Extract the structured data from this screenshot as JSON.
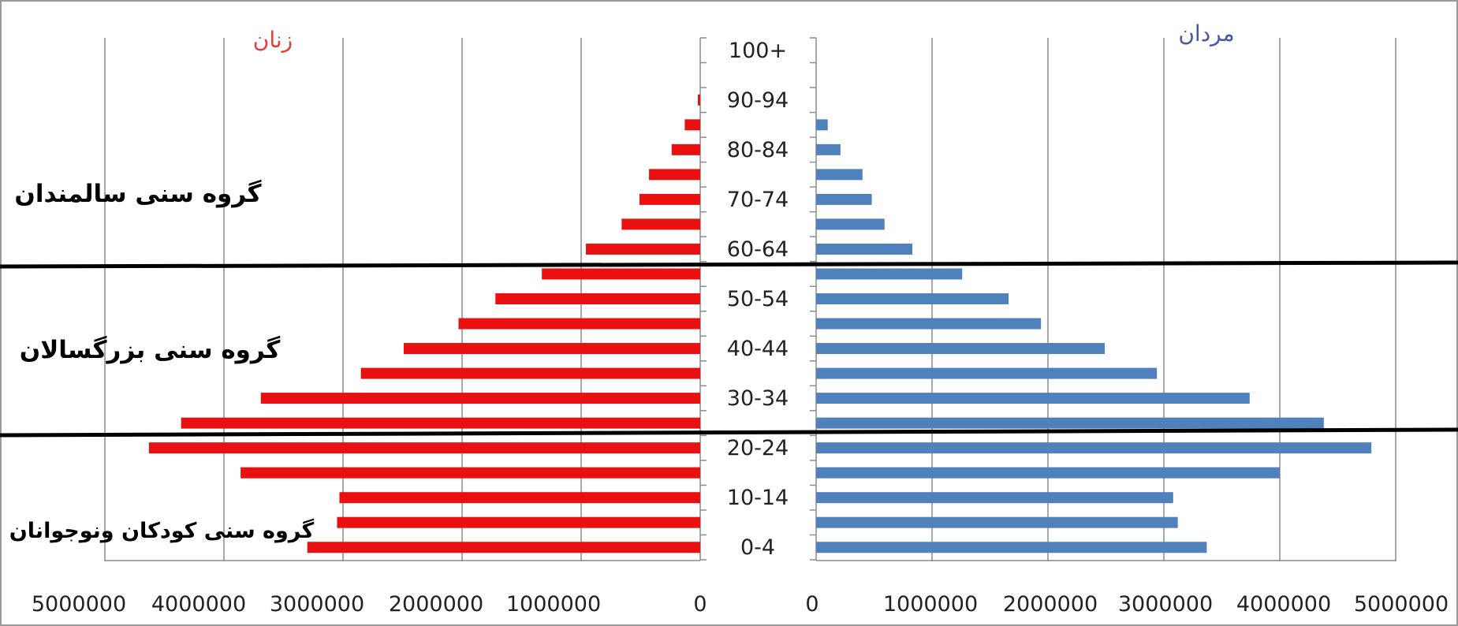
{
  "chart_data": {
    "type": "bar",
    "orientation": "horizontal",
    "layout": "population-pyramid",
    "age_groups": [
      "0-4",
      "5-9",
      "10-14",
      "15-19",
      "20-24",
      "25-29",
      "30-34",
      "35-39",
      "40-44",
      "45-49",
      "50-54",
      "55-59",
      "60-64",
      "65-69",
      "70-74",
      "75-79",
      "80-84",
      "85-89",
      "90-94",
      "95-99",
      "100+"
    ],
    "age_labels_shown": [
      "0-4",
      "10-14",
      "20-24",
      "30-34",
      "40-44",
      "50-54",
      "60-64",
      "70-74",
      "80-84",
      "90-94",
      "100+"
    ],
    "series": [
      {
        "name": "زنان",
        "side": "left",
        "color": "#e81010",
        "values": [
          3300000,
          3050000,
          3030000,
          3860000,
          4630000,
          4360000,
          3690000,
          2850000,
          2490000,
          2030000,
          1720000,
          1330000,
          960000,
          660000,
          510000,
          430000,
          240000,
          130000,
          20000,
          0,
          0
        ]
      },
      {
        "name": "مردان",
        "side": "right",
        "color": "#4f81bd",
        "values": [
          3370000,
          3120000,
          3080000,
          4000000,
          4790000,
          4380000,
          3740000,
          2940000,
          2490000,
          1940000,
          1660000,
          1260000,
          830000,
          590000,
          480000,
          400000,
          210000,
          100000,
          0,
          0,
          0
        ]
      }
    ],
    "x_ticks_left": [
      "5000000",
      "4000000",
      "3000000",
      "2000000",
      "1000000",
      "0"
    ],
    "x_ticks_right": [
      "0",
      "1000000",
      "2000000",
      "3000000",
      "4000000",
      "5000000"
    ],
    "xlim": [
      0,
      5000000
    ],
    "grid": true,
    "legend": "top",
    "annotations": [
      "گروه سنی سالمندان",
      "گروه سنی بزرگسالان",
      "گروه سنی کودکان ونوجوانان"
    ],
    "divider_lines_between": [
      "55-59|60-64",
      "20-24|25-29"
    ]
  }
}
